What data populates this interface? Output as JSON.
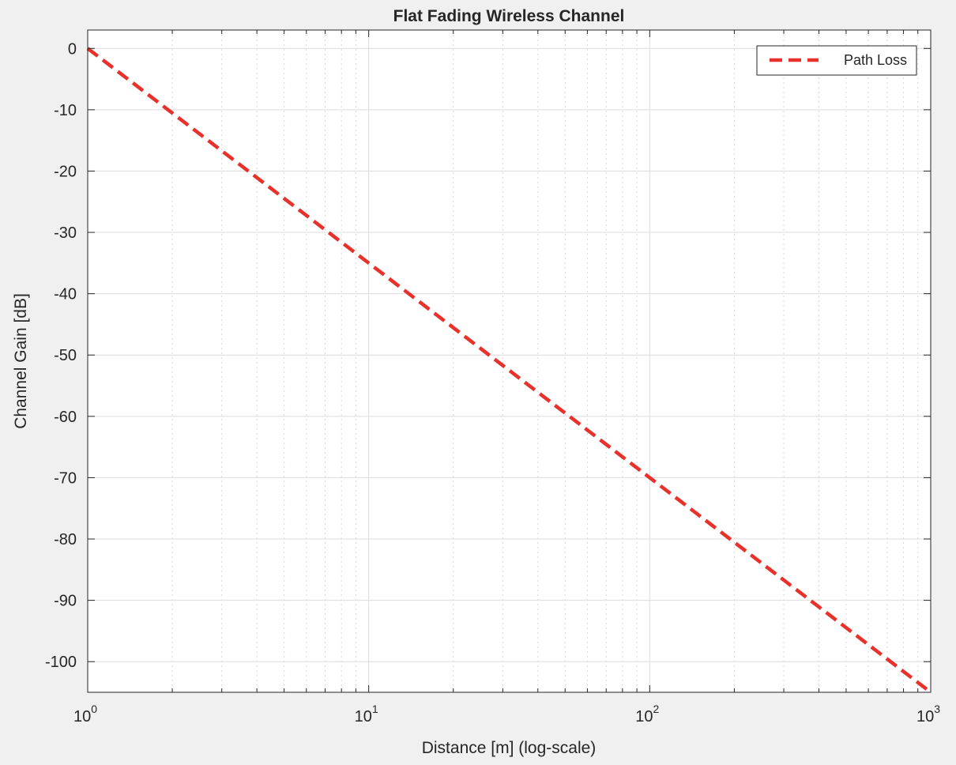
{
  "chart_data": {
    "type": "line",
    "title": "Flat Fading Wireless Channel",
    "xlabel": "Distance [m] (log-scale)",
    "ylabel": "Channel Gain [dB]",
    "xscale": "log",
    "xlim": [
      1,
      1000
    ],
    "ylim": [
      -105,
      3
    ],
    "x_ticks": [
      {
        "base": "10",
        "exp": "0",
        "value": 1
      },
      {
        "base": "10",
        "exp": "1",
        "value": 10
      },
      {
        "base": "10",
        "exp": "2",
        "value": 100
      },
      {
        "base": "10",
        "exp": "3",
        "value": 1000
      }
    ],
    "y_ticks": [
      0,
      -10,
      -20,
      -30,
      -40,
      -50,
      -60,
      -70,
      -80,
      -90,
      -100
    ],
    "y_tick_labels": [
      "0",
      "-10",
      "-20",
      "-30",
      "-40",
      "-50",
      "-60",
      "-70",
      "-80",
      "-90",
      "-100"
    ],
    "grid": true,
    "minor_grid": true,
    "legend_position": "top-right",
    "series": [
      {
        "name": "Path Loss",
        "color": "#e8312a",
        "line_style": "dashed",
        "x": [
          1,
          10,
          100,
          1000
        ],
        "y": [
          0,
          -35,
          -70,
          -105
        ]
      }
    ]
  }
}
